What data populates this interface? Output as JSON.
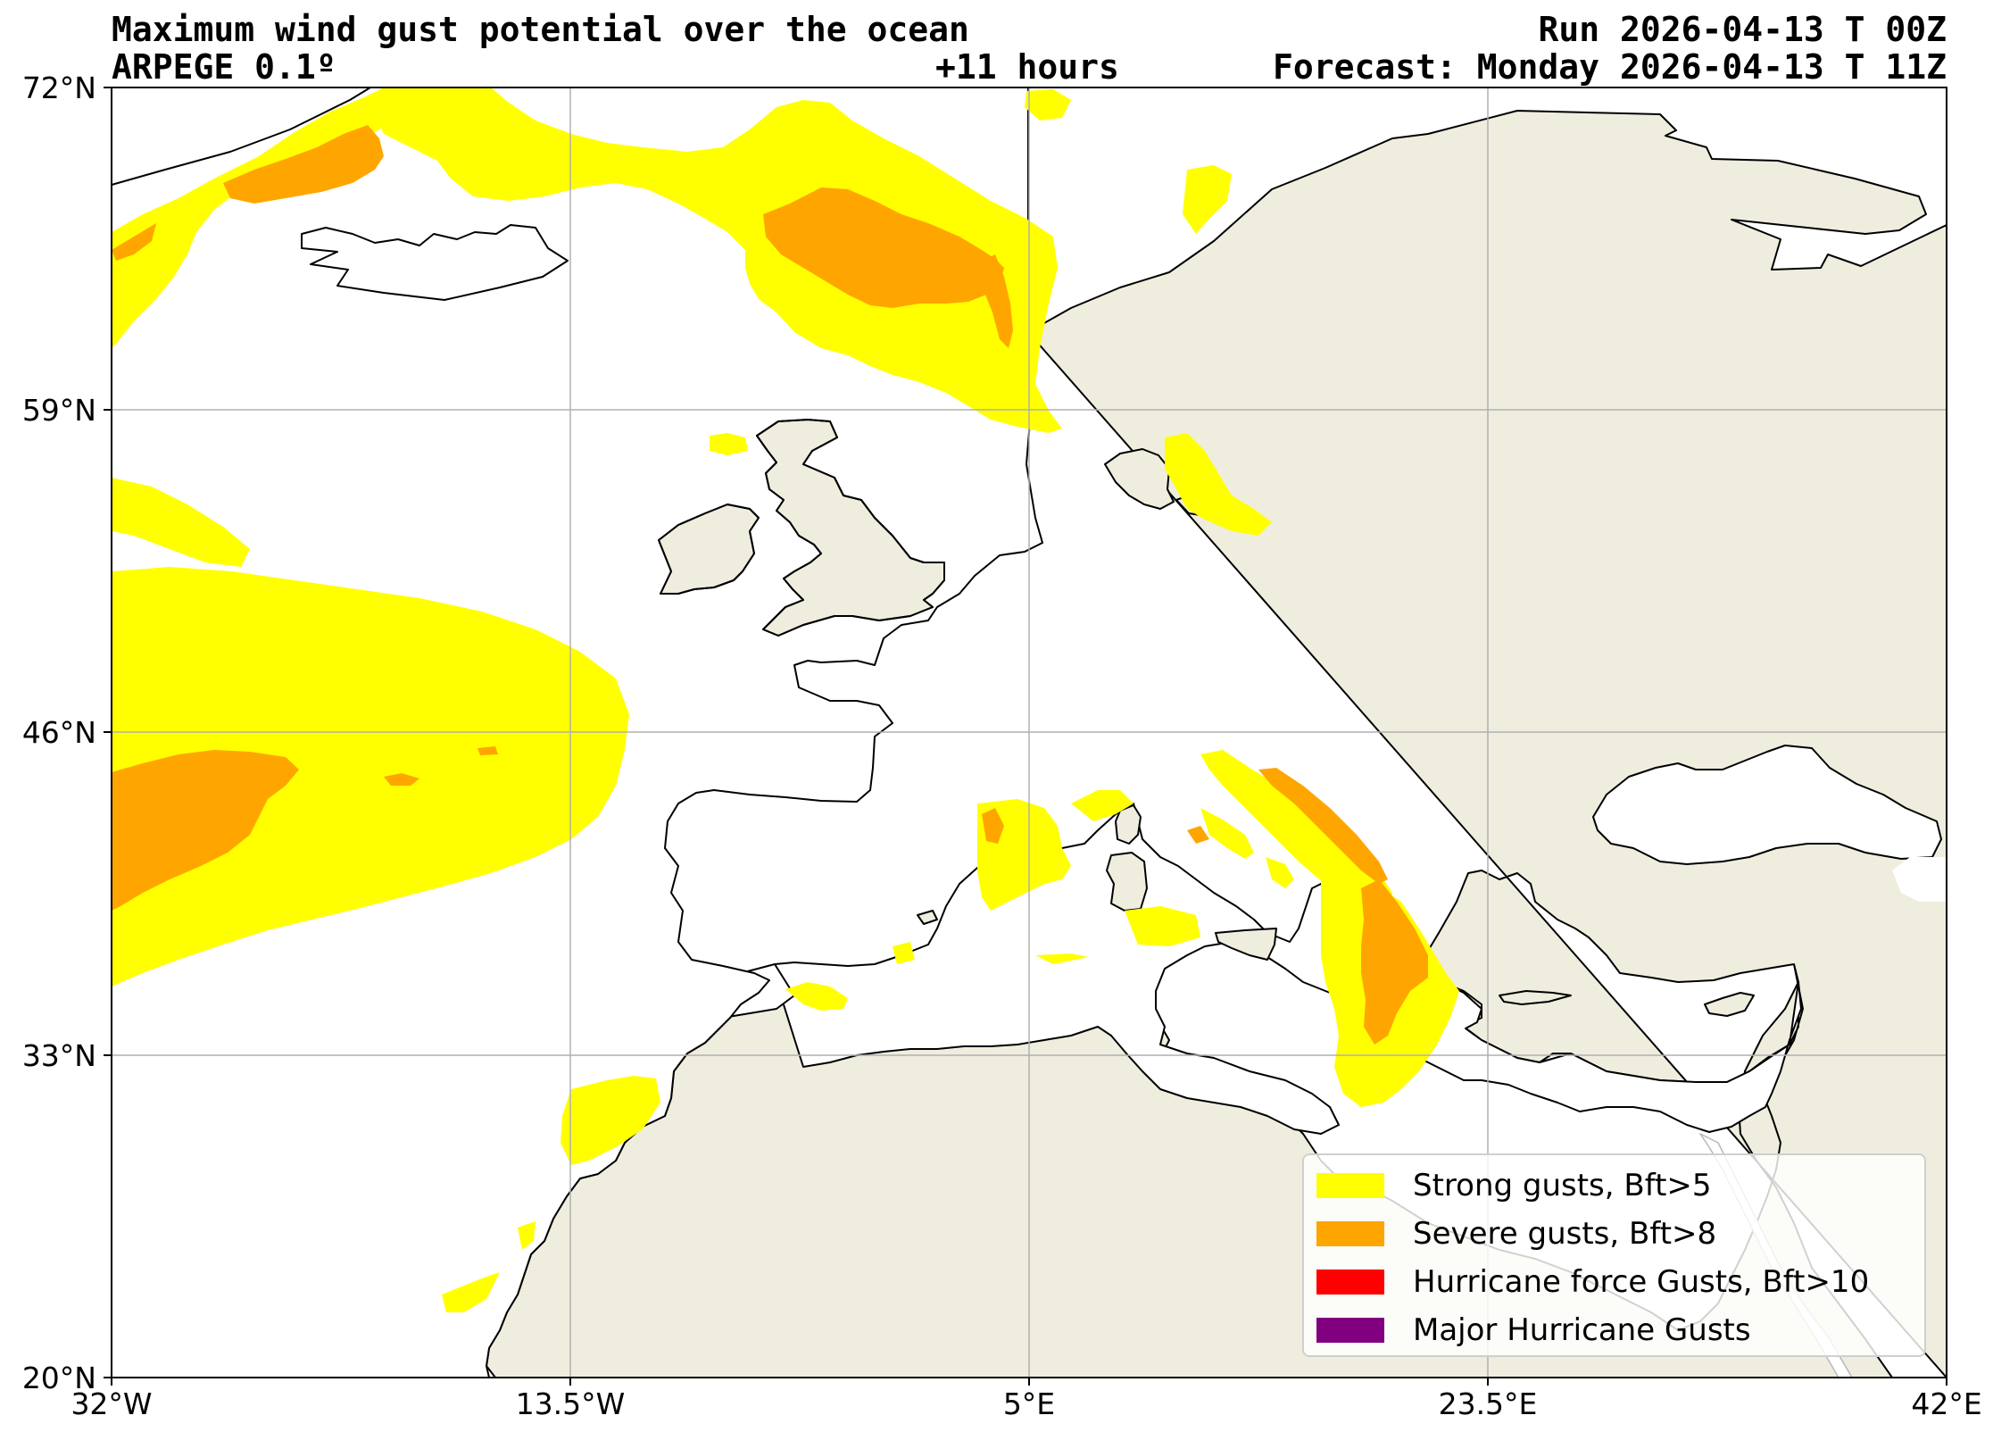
{
  "header": {
    "title": "Maximum wind gust potential over the ocean",
    "model": "ARPEGE 0.1º",
    "lead": "+11 hours",
    "run": "Run 2026-04-13 T 00Z",
    "forecast": "Forecast: Monday 2026-04-13 T 11Z"
  },
  "axes": {
    "x_ticks": [
      "32°W",
      "13.5°W",
      "5°E",
      "23.5°E",
      "42°E"
    ],
    "y_ticks": [
      "72°N",
      "59°N",
      "46°N",
      "33°N",
      "20°N"
    ],
    "lon_range": [
      -32,
      42
    ],
    "lat_range": [
      20,
      72
    ],
    "grid": true
  },
  "colors": {
    "land": "#efedde",
    "ocean": "#ffffff",
    "strong": "#ffff00",
    "severe": "#ffa500",
    "hurricane": "#ff0000",
    "major": "#800080",
    "coast": "#000000",
    "grid": "#b0b0b0"
  },
  "legend": {
    "placement": "lower-right",
    "items": [
      {
        "label": "Strong gusts, Bft>5",
        "color": "#ffff00"
      },
      {
        "label": "Severe gusts, Bft>8",
        "color": "#ffa500"
      },
      {
        "label": "Hurricane force Gusts, Bft>10",
        "color": "#ff0000"
      },
      {
        "label": "Major Hurricane Gusts",
        "color": "#800080"
      }
    ]
  }
}
